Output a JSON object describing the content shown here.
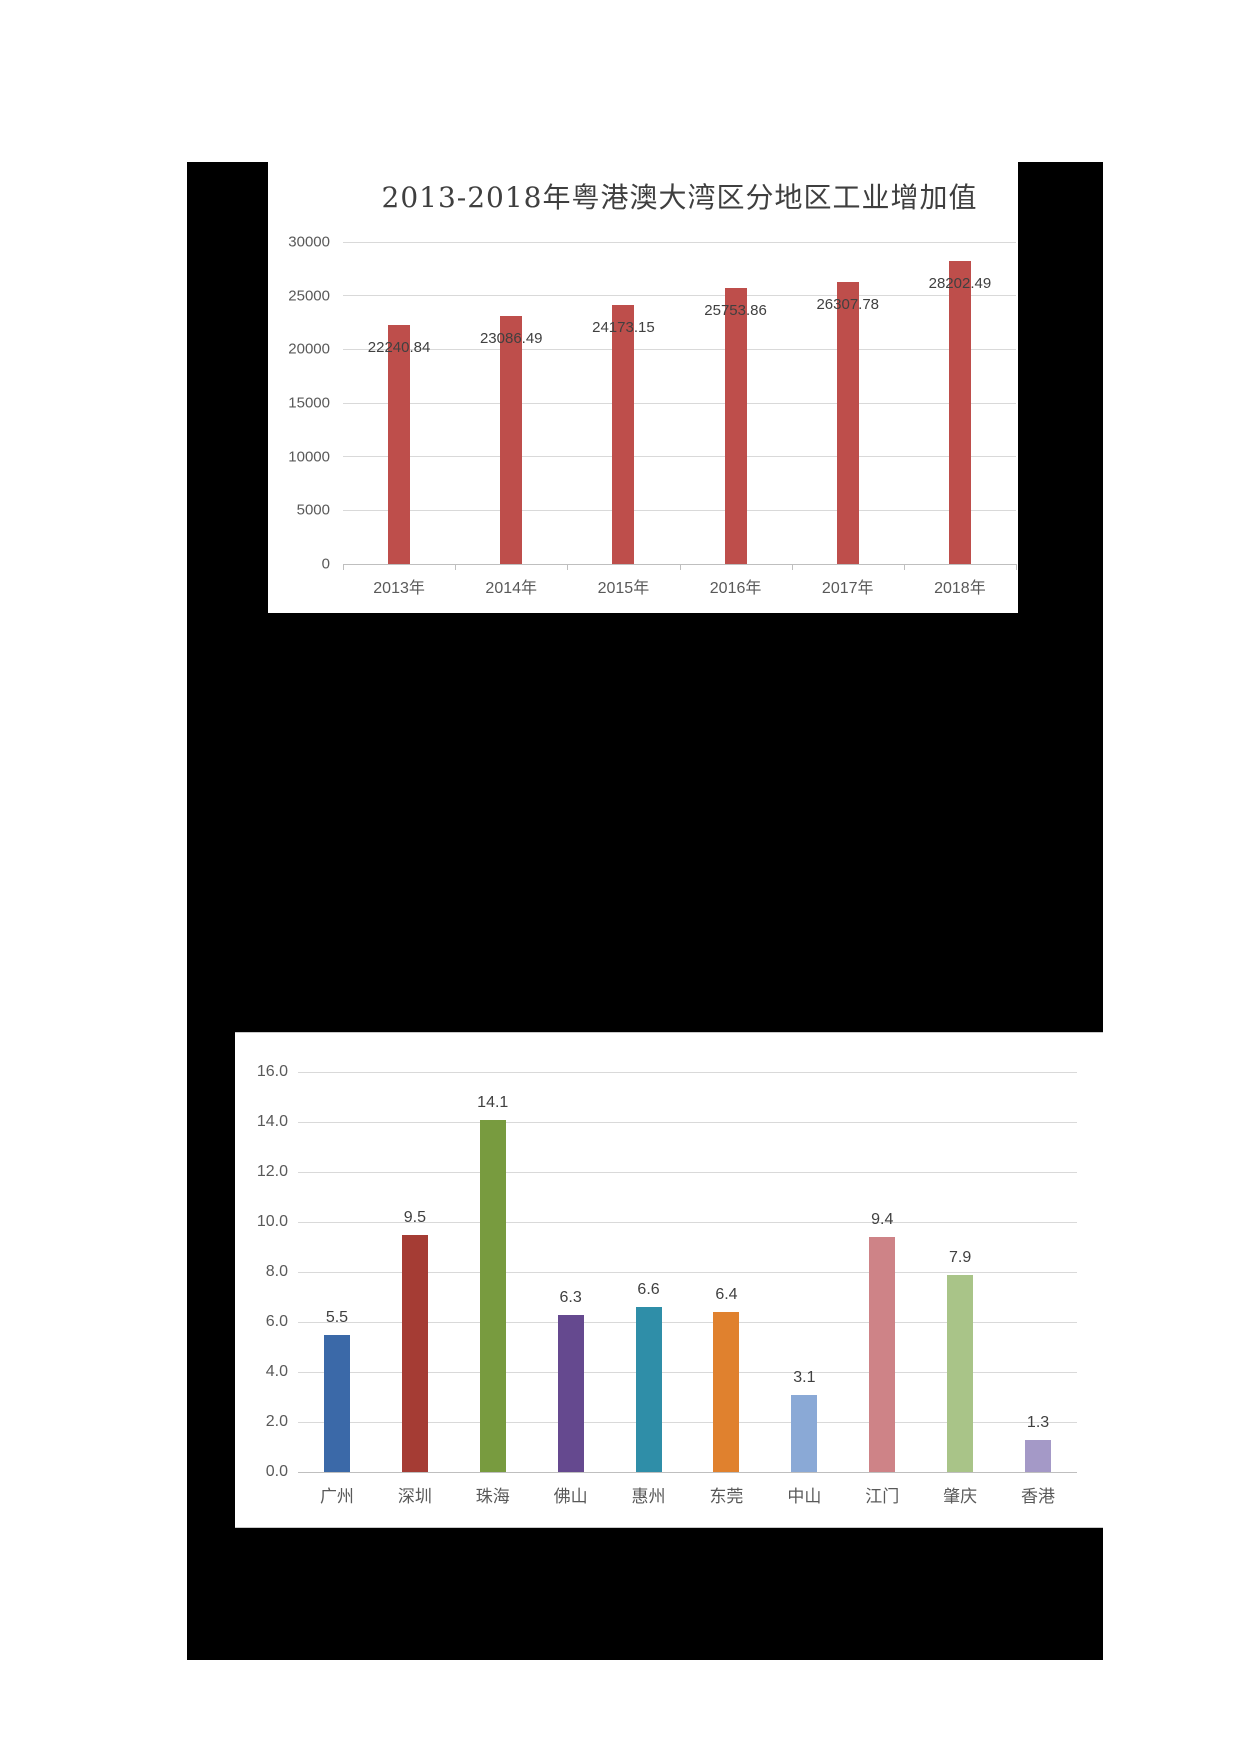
{
  "page": {
    "background_color": "#ffffff",
    "redaction_color": "#000000"
  },
  "chart_data": [
    {
      "type": "bar",
      "title": "2013-2018年粤港澳大湾区分地区工业增加值",
      "categories": [
        "2013年",
        "2014年",
        "2015年",
        "2016年",
        "2017年",
        "2018年"
      ],
      "values": [
        22240.84,
        23086.49,
        24173.15,
        25753.86,
        26307.78,
        28202.49
      ],
      "value_labels": [
        "22240.84",
        "23086.49",
        "24173.15",
        "25753.86",
        "26307.78",
        "28202.49"
      ],
      "ylim": [
        0,
        30000
      ],
      "ytick": 5000,
      "ytick_labels": [
        "0",
        "5000",
        "10000",
        "15000",
        "20000",
        "25000",
        "30000"
      ],
      "bar_color": "#be4e4b",
      "grid": true,
      "legend": false,
      "xlabel": "",
      "ylabel": ""
    },
    {
      "type": "bar",
      "title": "",
      "categories": [
        "广州",
        "深圳",
        "珠海",
        "佛山",
        "惠州",
        "东莞",
        "中山",
        "江门",
        "肇庆",
        "香港"
      ],
      "values": [
        5.5,
        9.5,
        14.1,
        6.3,
        6.6,
        6.4,
        3.1,
        9.4,
        7.9,
        1.3
      ],
      "value_labels": [
        "5.5",
        "9.5",
        "14.1",
        "6.3",
        "6.6",
        "6.4",
        "3.1",
        "9.4",
        "7.9",
        "1.3"
      ],
      "ylim": [
        0,
        16
      ],
      "ytick": 2,
      "ytick_labels": [
        "0.0",
        "2.0",
        "4.0",
        "6.0",
        "8.0",
        "10.0",
        "12.0",
        "14.0",
        "16.0"
      ],
      "bar_colors": [
        "#3b69a8",
        "#a53c34",
        "#789b3f",
        "#65498f",
        "#2f8ea8",
        "#e0812e",
        "#8aa9d6",
        "#ce8387",
        "#a9c488",
        "#a499c7"
      ],
      "grid": true,
      "legend": false,
      "xlabel": "",
      "ylabel": ""
    }
  ]
}
